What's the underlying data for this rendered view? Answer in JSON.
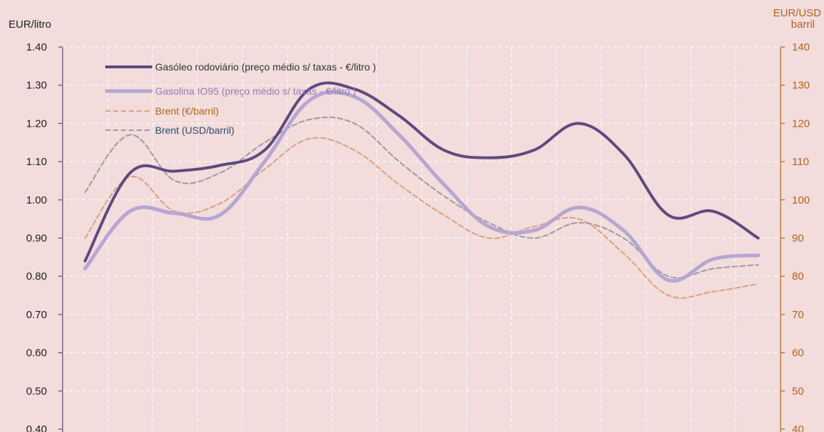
{
  "chart_data": {
    "type": "line",
    "ylabel_left": "EUR/litro",
    "ylabel_right_line1": "EUR/USD",
    "ylabel_right_line2": "barril",
    "ylim_left": [
      0.4,
      1.4
    ],
    "ylim_right": [
      40,
      140
    ],
    "yticks_left": [
      "1.40",
      "1.30",
      "1.20",
      "1.10",
      "1.00",
      "0.90",
      "0.80",
      "0.70",
      "0.60",
      "0.50",
      "0.40"
    ],
    "yticks_right": [
      "140",
      "130",
      "120",
      "110",
      "100",
      "90",
      "80",
      "70",
      "60",
      "50",
      "40"
    ],
    "grid": true,
    "legend_position": "top-left",
    "x_count": 16,
    "series": [
      {
        "name": "Gasóleo rodoviário (preço médio s/ taxas - €/litro )",
        "axis": "left",
        "color": "#5e4a7f",
        "dash": false,
        "width": 4,
        "values": [
          0.84,
          1.07,
          1.075,
          1.09,
          1.13,
          1.29,
          1.29,
          1.22,
          1.13,
          1.11,
          1.13,
          1.2,
          1.12,
          0.96,
          0.97,
          0.9
        ]
      },
      {
        "name": "Gasolina IO95 (preço médio s/ taxas - €/litro )",
        "axis": "left",
        "color": "#b5a6d3",
        "dash": false,
        "width": 5,
        "values": [
          0.82,
          0.97,
          0.965,
          0.96,
          1.1,
          1.26,
          1.27,
          1.17,
          1.04,
          0.93,
          0.92,
          0.98,
          0.92,
          0.79,
          0.845,
          0.855
        ]
      },
      {
        "name": "Brent (€/barril)",
        "axis": "right",
        "color": "#d8a27e",
        "dash": true,
        "width": 2,
        "values": [
          90,
          106,
          97,
          99,
          108,
          116,
          113,
          104,
          96,
          90,
          93,
          95,
          86,
          75,
          76,
          78
        ]
      },
      {
        "name": "Brent (USD/barril)",
        "axis": "right",
        "color": "#9d9aa2",
        "dash": true,
        "width": 2,
        "values": [
          102,
          117,
          105,
          107,
          115,
          121,
          120,
          110,
          101,
          94,
          90,
          94,
          90,
          80,
          82,
          83
        ]
      }
    ]
  }
}
